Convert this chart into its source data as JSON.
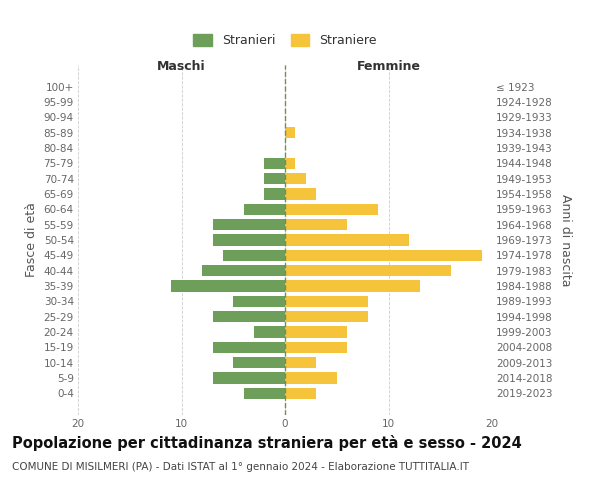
{
  "age_groups": [
    "100+",
    "95-99",
    "90-94",
    "85-89",
    "80-84",
    "75-79",
    "70-74",
    "65-69",
    "60-64",
    "55-59",
    "50-54",
    "45-49",
    "40-44",
    "35-39",
    "30-34",
    "25-29",
    "20-24",
    "15-19",
    "10-14",
    "5-9",
    "0-4"
  ],
  "birth_years": [
    "≤ 1923",
    "1924-1928",
    "1929-1933",
    "1934-1938",
    "1939-1943",
    "1944-1948",
    "1949-1953",
    "1954-1958",
    "1959-1963",
    "1964-1968",
    "1969-1973",
    "1974-1978",
    "1979-1983",
    "1984-1988",
    "1989-1993",
    "1994-1998",
    "1999-2003",
    "2004-2008",
    "2009-2013",
    "2014-2018",
    "2019-2023"
  ],
  "males": [
    0,
    0,
    0,
    0,
    0,
    2,
    2,
    2,
    4,
    7,
    7,
    6,
    8,
    11,
    5,
    7,
    3,
    7,
    5,
    7,
    4
  ],
  "females": [
    0,
    0,
    0,
    1,
    0,
    1,
    2,
    3,
    9,
    6,
    12,
    19,
    16,
    13,
    8,
    8,
    6,
    6,
    3,
    5,
    3
  ],
  "male_color": "#6d9e5a",
  "female_color": "#f5c43a",
  "background_color": "#ffffff",
  "grid_color": "#cccccc",
  "bar_height": 0.75,
  "xlim": 20,
  "title": "Popolazione per cittadinanza straniera per età e sesso - 2024",
  "subtitle": "COMUNE DI MISILMERI (PA) - Dati ISTAT al 1° gennaio 2024 - Elaborazione TUTTITALIA.IT",
  "xlabel_left": "Maschi",
  "xlabel_right": "Femmine",
  "ylabel_left": "Fasce di età",
  "ylabel_right": "Anni di nascita",
  "legend_stranieri": "Stranieri",
  "legend_straniere": "Straniere",
  "title_fontsize": 10.5,
  "subtitle_fontsize": 7.5,
  "tick_fontsize": 7.5,
  "label_fontsize": 9
}
